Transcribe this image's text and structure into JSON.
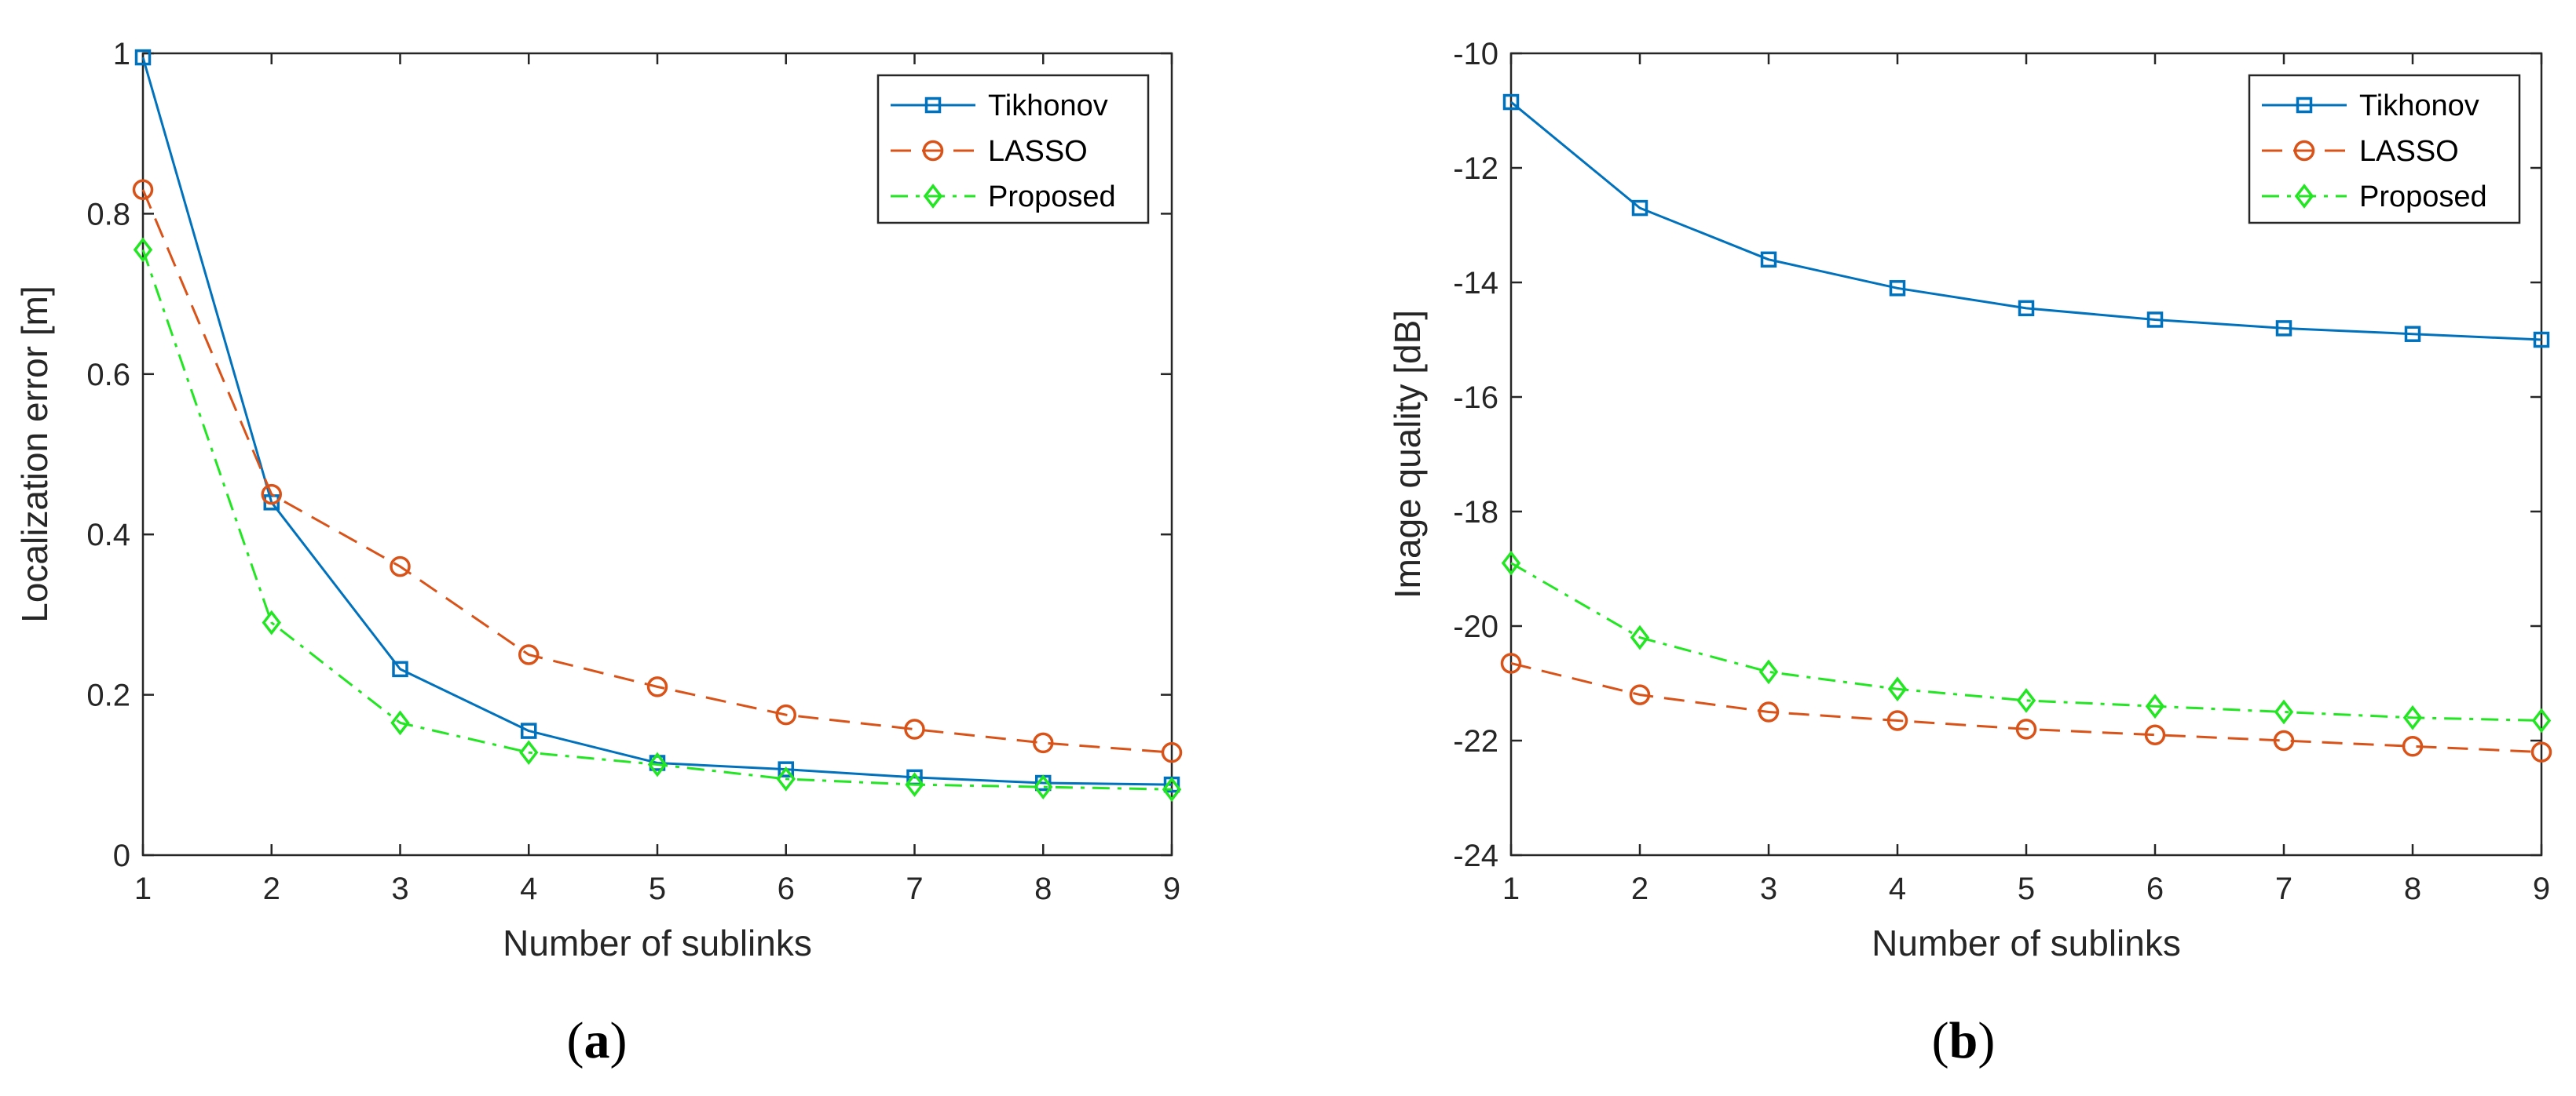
{
  "colors": {
    "tikhonov": "#0072BD",
    "lasso": "#D95319",
    "proposed": "#22E622",
    "axis": "#262626"
  },
  "chart_data": [
    {
      "type": "line",
      "panel_label": "a",
      "title": "",
      "xlabel": "Number of sublinks",
      "ylabel": "Localization error [m]",
      "xlim": [
        1,
        9
      ],
      "ylim": [
        0,
        1
      ],
      "xticks": [
        1,
        2,
        3,
        4,
        5,
        6,
        7,
        8,
        9
      ],
      "yticks": [
        0,
        0.2,
        0.4,
        0.6,
        0.8,
        1
      ],
      "yticklabels": [
        "0",
        "0.2",
        "0.4",
        "0.6",
        "0.8",
        "1"
      ],
      "legend_position": "top-right",
      "x": [
        1,
        2,
        3,
        4,
        5,
        6,
        7,
        8,
        9
      ],
      "series": [
        {
          "name": "Tikhonov",
          "marker": "square",
          "dash": "solid",
          "color_key": "tikhonov",
          "values": [
            0.995,
            0.44,
            0.232,
            0.155,
            0.115,
            0.107,
            0.097,
            0.09,
            0.088
          ]
        },
        {
          "name": "LASSO",
          "marker": "circle",
          "dash": "dashed",
          "color_key": "lasso",
          "values": [
            0.83,
            0.45,
            0.36,
            0.25,
            0.21,
            0.175,
            0.157,
            0.14,
            0.128
          ]
        },
        {
          "name": "Proposed",
          "marker": "diamond",
          "dash": "dashdot",
          "color_key": "proposed",
          "values": [
            0.755,
            0.29,
            0.165,
            0.128,
            0.113,
            0.095,
            0.088,
            0.085,
            0.082
          ]
        }
      ]
    },
    {
      "type": "line",
      "panel_label": "b",
      "title": "",
      "xlabel": "Number of sublinks",
      "ylabel": "Image quality [dB]",
      "xlim": [
        1,
        9
      ],
      "ylim": [
        -24,
        -10
      ],
      "xticks": [
        1,
        2,
        3,
        4,
        5,
        6,
        7,
        8,
        9
      ],
      "yticks": [
        -24,
        -22,
        -20,
        -18,
        -16,
        -14,
        -12,
        -10
      ],
      "yticklabels": [
        "-24",
        "-22",
        "-20",
        "-18",
        "-16",
        "-14",
        "-12",
        "-10"
      ],
      "legend_position": "top-right",
      "x": [
        1,
        2,
        3,
        4,
        5,
        6,
        7,
        8,
        9
      ],
      "series": [
        {
          "name": "Tikhonov",
          "marker": "square",
          "dash": "solid",
          "color_key": "tikhonov",
          "values": [
            -10.85,
            -12.7,
            -13.6,
            -14.1,
            -14.45,
            -14.65,
            -14.8,
            -14.9,
            -15.0
          ]
        },
        {
          "name": "LASSO",
          "marker": "circle",
          "dash": "dashed",
          "color_key": "lasso",
          "values": [
            -20.65,
            -21.2,
            -21.5,
            -21.65,
            -21.8,
            -21.9,
            -22.0,
            -22.1,
            -22.2
          ]
        },
        {
          "name": "Proposed",
          "marker": "diamond",
          "dash": "dashdot",
          "color_key": "proposed",
          "values": [
            -18.9,
            -20.2,
            -20.8,
            -21.1,
            -21.3,
            -21.4,
            -21.5,
            -21.6,
            -21.65
          ]
        }
      ]
    }
  ]
}
